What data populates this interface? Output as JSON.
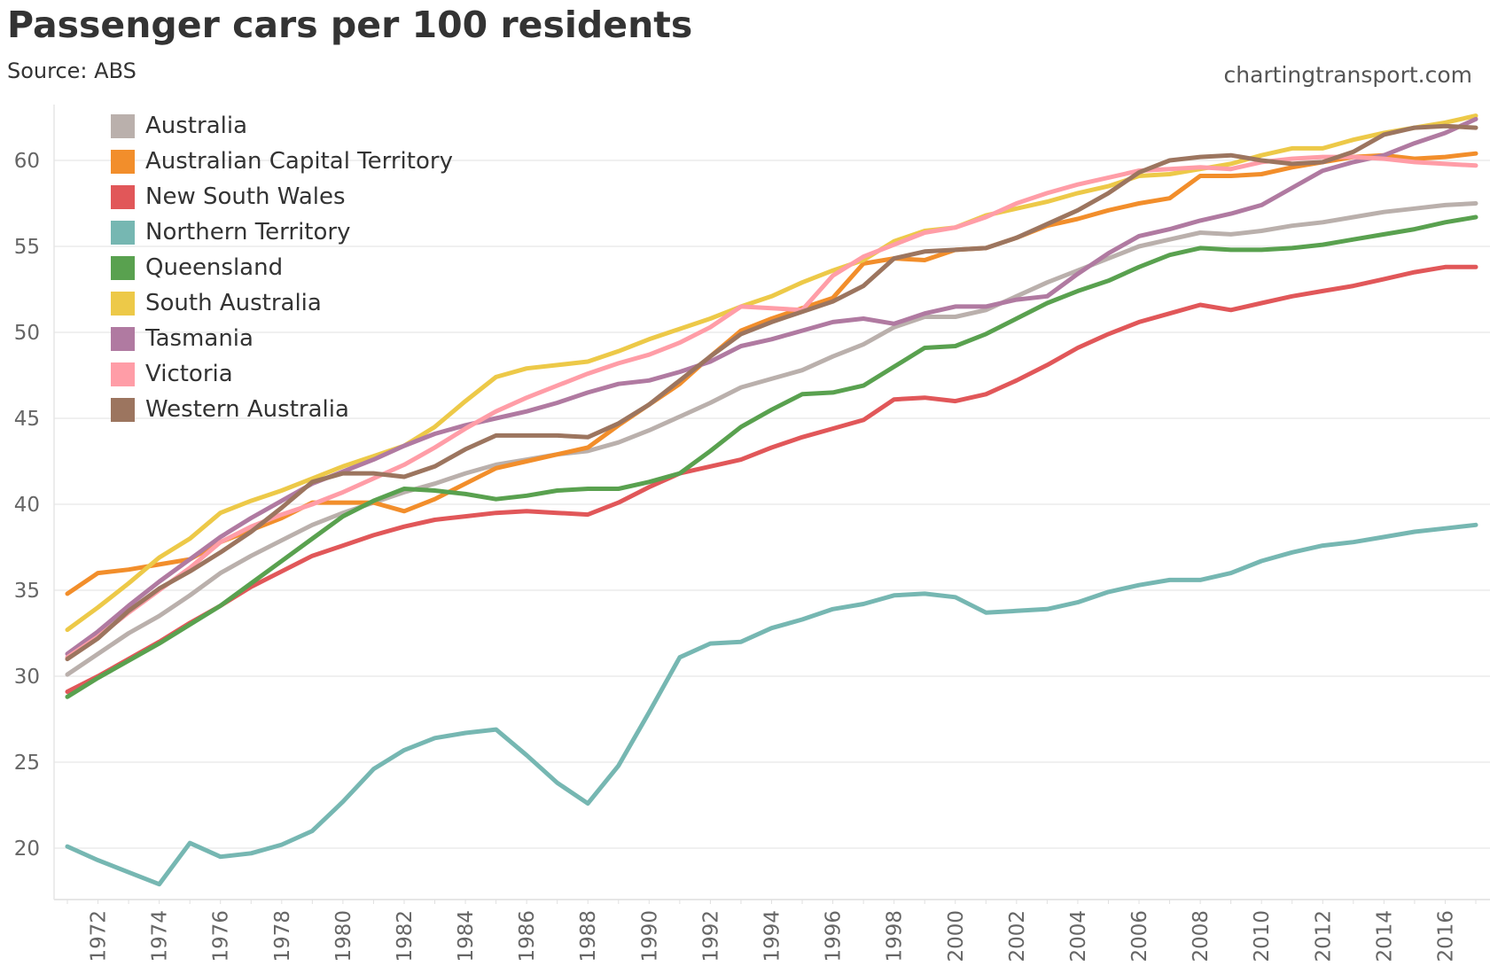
{
  "chart_data": {
    "type": "line",
    "title": "Passenger cars per 100 residents",
    "subtitle": "Source: ABS",
    "credit": "chartingtransport.com",
    "xlabel": "",
    "ylabel": "",
    "xlim": [
      1970.8,
      2017.5
    ],
    "ylim": [
      17,
      63
    ],
    "yticks": [
      20,
      25,
      30,
      35,
      40,
      45,
      50,
      55,
      60
    ],
    "xticks": [
      1972,
      1974,
      1976,
      1978,
      1980,
      1982,
      1984,
      1986,
      1988,
      1990,
      1992,
      1994,
      1996,
      1998,
      2000,
      2002,
      2004,
      2006,
      2008,
      2010,
      2012,
      2014,
      2016
    ],
    "grid": "horizontal",
    "legend_position": "top-left",
    "x_start": 1971,
    "series": [
      {
        "name": "Australia",
        "color": "#bab0ac",
        "values": [
          30.1,
          31.3,
          32.5,
          33.5,
          34.7,
          36.0,
          37.0,
          37.9,
          38.8,
          39.5,
          40.1,
          40.7,
          41.2,
          41.8,
          42.3,
          42.6,
          42.9,
          43.1,
          43.6,
          44.3,
          45.1,
          45.9,
          46.8,
          47.3,
          47.8,
          48.6,
          49.3,
          50.3,
          50.9,
          50.9,
          51.3,
          52.1,
          52.9,
          53.6,
          54.3,
          55.0,
          55.4,
          55.8,
          55.7,
          55.9,
          56.2,
          56.4,
          56.7,
          57.0,
          57.2,
          57.4,
          57.5
        ]
      },
      {
        "name": "Australian Capital Territory",
        "color": "#f28e2b",
        "values": [
          34.8,
          36.0,
          36.2,
          36.5,
          36.8,
          37.8,
          38.5,
          39.2,
          40.1,
          40.1,
          40.1,
          39.6,
          40.3,
          41.2,
          42.1,
          42.5,
          42.9,
          43.3,
          44.6,
          45.8,
          47.0,
          48.6,
          50.1,
          50.8,
          51.4,
          52.0,
          54.0,
          54.3,
          54.2,
          54.8,
          54.9,
          55.5,
          56.2,
          56.6,
          57.1,
          57.5,
          57.8,
          59.1,
          59.1,
          59.2,
          59.6,
          59.9,
          60.2,
          60.3,
          60.1,
          60.2,
          60.4
        ]
      },
      {
        "name": "New South Wales",
        "color": "#e15759",
        "values": [
          29.1,
          30.0,
          31.0,
          32.0,
          33.1,
          34.1,
          35.2,
          36.1,
          37.0,
          37.6,
          38.2,
          38.7,
          39.1,
          39.3,
          39.5,
          39.6,
          39.5,
          39.4,
          40.1,
          41.0,
          41.8,
          42.2,
          42.6,
          43.3,
          43.9,
          44.4,
          44.9,
          46.1,
          46.2,
          46.0,
          46.4,
          47.2,
          48.1,
          49.1,
          49.9,
          50.6,
          51.1,
          51.6,
          51.3,
          51.7,
          52.1,
          52.4,
          52.7,
          53.1,
          53.5,
          53.8,
          53.8
        ]
      },
      {
        "name": "Northern Territory",
        "color": "#76b7b2",
        "values": [
          20.1,
          19.3,
          18.6,
          17.9,
          20.3,
          19.5,
          19.7,
          20.2,
          21.0,
          22.7,
          24.6,
          25.7,
          26.4,
          26.7,
          26.9,
          25.4,
          23.8,
          22.6,
          24.8,
          27.9,
          31.1,
          31.9,
          32.0,
          32.8,
          33.3,
          33.9,
          34.2,
          34.7,
          34.8,
          34.6,
          33.7,
          33.8,
          33.9,
          34.3,
          34.9,
          35.3,
          35.6,
          35.6,
          36.0,
          36.7,
          37.2,
          37.6,
          37.8,
          38.1,
          38.4,
          38.6,
          38.8
        ]
      },
      {
        "name": "Queensland",
        "color": "#59a14f",
        "values": [
          28.8,
          29.9,
          30.9,
          31.9,
          33.0,
          34.1,
          35.4,
          36.7,
          38.0,
          39.3,
          40.2,
          40.9,
          40.8,
          40.6,
          40.3,
          40.5,
          40.8,
          40.9,
          40.9,
          41.3,
          41.8,
          43.1,
          44.5,
          45.5,
          46.4,
          46.5,
          46.9,
          48.0,
          49.1,
          49.2,
          49.9,
          50.8,
          51.7,
          52.4,
          53.0,
          53.8,
          54.5,
          54.9,
          54.8,
          54.8,
          54.9,
          55.1,
          55.4,
          55.7,
          56.0,
          56.4,
          56.7
        ]
      },
      {
        "name": "South Australia",
        "color": "#edc948",
        "values": [
          32.7,
          34.0,
          35.4,
          36.9,
          38.0,
          39.5,
          40.2,
          40.8,
          41.5,
          42.2,
          42.8,
          43.4,
          44.5,
          46.0,
          47.4,
          47.9,
          48.1,
          48.3,
          48.9,
          49.6,
          50.2,
          50.8,
          51.5,
          52.1,
          52.9,
          53.6,
          54.2,
          55.3,
          55.9,
          56.1,
          56.8,
          57.2,
          57.6,
          58.1,
          58.5,
          59.1,
          59.2,
          59.5,
          59.8,
          60.3,
          60.7,
          60.7,
          61.2,
          61.6,
          61.9,
          62.2,
          62.6
        ]
      },
      {
        "name": "Tasmania",
        "color": "#b07aa1",
        "values": [
          31.3,
          32.6,
          34.1,
          35.5,
          36.8,
          38.1,
          39.2,
          40.2,
          41.2,
          41.9,
          42.6,
          43.4,
          44.1,
          44.6,
          45.0,
          45.4,
          45.9,
          46.5,
          47.0,
          47.2,
          47.7,
          48.3,
          49.2,
          49.6,
          50.1,
          50.6,
          50.8,
          50.5,
          51.1,
          51.5,
          51.5,
          51.9,
          52.1,
          53.4,
          54.6,
          55.6,
          56.0,
          56.5,
          56.9,
          57.4,
          58.4,
          59.4,
          59.9,
          60.3,
          61.0,
          61.6,
          62.4
        ]
      },
      {
        "name": "Victoria",
        "color": "#ff9da7",
        "values": [
          31.1,
          32.3,
          33.7,
          35.0,
          36.3,
          37.8,
          38.7,
          39.4,
          40.0,
          40.7,
          41.5,
          42.3,
          43.3,
          44.4,
          45.4,
          46.2,
          46.9,
          47.6,
          48.2,
          48.7,
          49.4,
          50.3,
          51.5,
          51.4,
          51.3,
          53.3,
          54.4,
          55.1,
          55.8,
          56.1,
          56.7,
          57.5,
          58.1,
          58.6,
          59.0,
          59.4,
          59.5,
          59.6,
          59.5,
          59.9,
          60.1,
          60.2,
          60.2,
          60.1,
          59.9,
          59.8,
          59.7
        ]
      },
      {
        "name": "Western Australia",
        "color": "#9c755f",
        "values": [
          31.0,
          32.2,
          33.8,
          35.1,
          36.1,
          37.2,
          38.4,
          39.8,
          41.3,
          41.8,
          41.8,
          41.6,
          42.2,
          43.2,
          44.0,
          44.0,
          44.0,
          43.9,
          44.7,
          45.8,
          47.2,
          48.6,
          49.9,
          50.6,
          51.2,
          51.8,
          52.7,
          54.3,
          54.7,
          54.8,
          54.9,
          55.5,
          56.3,
          57.1,
          58.1,
          59.3,
          60.0,
          60.2,
          60.3,
          60.0,
          59.8,
          59.9,
          60.5,
          61.5,
          61.9,
          62.0,
          61.9
        ]
      }
    ]
  }
}
